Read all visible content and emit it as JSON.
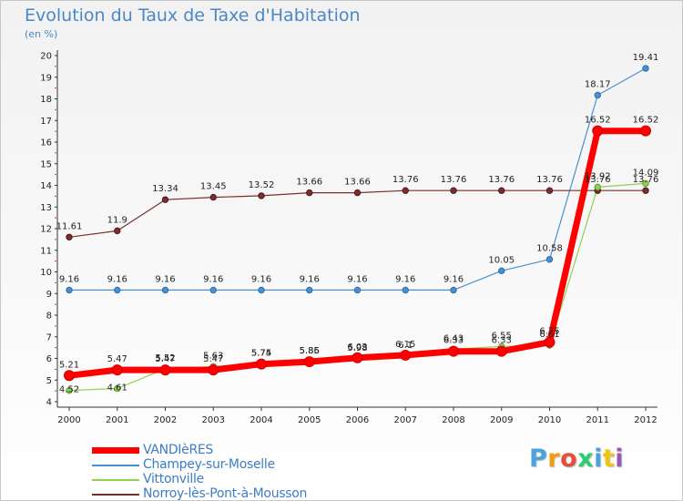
{
  "title": "Evolution du Taux de Taxe d'Habitation",
  "unit": "(en %)",
  "logo": "Proxiti",
  "chart_data": {
    "type": "line",
    "title": "Evolution du Taux de Taxe d'Habitation",
    "ylabel": "(en %)",
    "xlabel": "",
    "x": [
      "2000",
      "2001",
      "2002",
      "2003",
      "2004",
      "2005",
      "2006",
      "2007",
      "2008",
      "2009",
      "2010",
      "2011",
      "2012"
    ],
    "ylim": [
      4,
      20
    ],
    "yticks": [
      4,
      5,
      6,
      7,
      8,
      9,
      10,
      11,
      12,
      13,
      14,
      15,
      16,
      17,
      18,
      19,
      20
    ],
    "grid": false,
    "legend": "bottom-left",
    "series": [
      {
        "name": "VANDIèRES",
        "color": "#ff0000",
        "values": [
          5.21,
          5.47,
          5.47,
          5.47,
          5.74,
          5.85,
          6.03,
          6.15,
          6.33,
          6.33,
          6.75,
          16.52,
          16.52
        ]
      },
      {
        "name": "Champey-sur-Moselle",
        "color": "#4a90d0",
        "values": [
          9.16,
          9.16,
          9.16,
          9.16,
          9.16,
          9.16,
          9.16,
          9.16,
          9.16,
          10.05,
          10.58,
          18.17,
          19.41
        ]
      },
      {
        "name": "Vittonville",
        "color": "#92d050",
        "values": [
          4.52,
          4.61,
          5.52,
          5.63,
          5.75,
          5.86,
          5.98,
          6.1,
          6.43,
          6.55,
          6.61,
          13.92,
          14.09
        ]
      },
      {
        "name": "Norroy-lès-Pont-à-Mousson",
        "color": "#7a2f2f",
        "values": [
          11.61,
          11.9,
          13.34,
          13.45,
          13.52,
          13.66,
          13.66,
          13.76,
          13.76,
          13.76,
          13.76,
          13.76,
          13.76
        ]
      }
    ]
  }
}
